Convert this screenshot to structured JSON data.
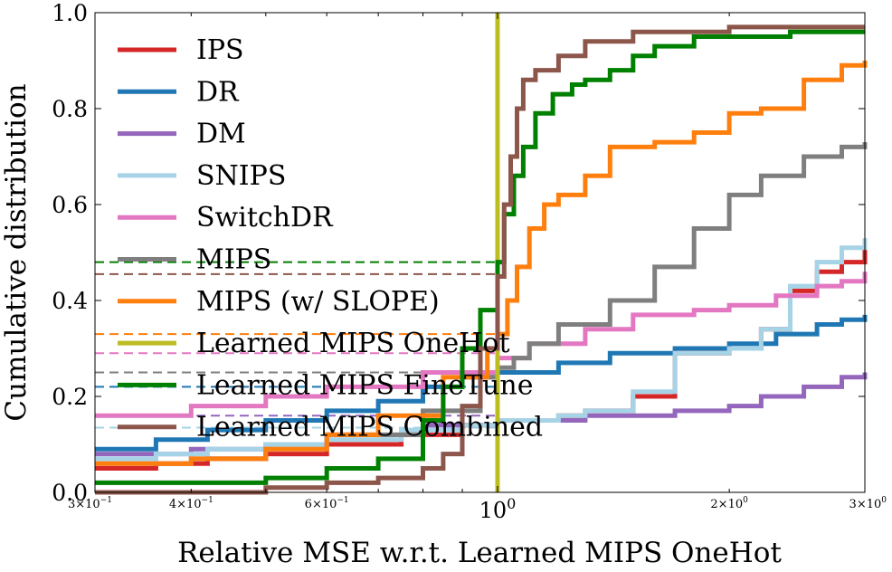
{
  "chart_data": {
    "type": "line",
    "title": "",
    "xlabel": "Relative MSE w.r.t. Learned MIPS OneHot",
    "ylabel": "Cumulative distribution",
    "x_scale": "log",
    "xlim": [
      0.3,
      3.0
    ],
    "ylim": [
      0.0,
      1.0
    ],
    "grid": false,
    "legend_position": "upper-left",
    "x_ticks": [
      {
        "value": 0.3,
        "base": "3×10",
        "exp": "−1"
      },
      {
        "value": 0.4,
        "base": "4×10",
        "exp": "−1"
      },
      {
        "value": 0.6,
        "base": "6×10",
        "exp": "−1"
      },
      {
        "value": 1.0,
        "base": "10",
        "exp": "0"
      },
      {
        "value": 2.0,
        "base": "2×10",
        "exp": "0"
      },
      {
        "value": 3.0,
        "base": "3×10",
        "exp": "0"
      }
    ],
    "y_ticks": [
      "0.0",
      "0.2",
      "0.4",
      "0.6",
      "0.8",
      "1.0"
    ],
    "y_tick_values": [
      0.0,
      0.2,
      0.4,
      0.6,
      0.8,
      1.0
    ],
    "series": [
      {
        "name": "IPS",
        "color": "#d62728",
        "x": [
          0.3,
          0.36,
          0.42,
          0.5,
          0.6,
          0.75,
          0.9,
          1.0,
          1.2,
          1.3,
          1.5,
          1.7,
          1.9,
          2.0,
          2.2,
          2.4,
          2.6,
          2.8,
          3.0
        ],
        "y": [
          0.05,
          0.06,
          0.07,
          0.08,
          0.1,
          0.12,
          0.14,
          0.15,
          0.16,
          0.17,
          0.2,
          0.29,
          0.29,
          0.3,
          0.34,
          0.42,
          0.46,
          0.48,
          0.51
        ]
      },
      {
        "name": "DR",
        "color": "#1f77b4",
        "x": [
          0.3,
          0.36,
          0.42,
          0.5,
          0.6,
          0.7,
          0.8,
          0.9,
          1.0,
          1.2,
          1.4,
          1.7,
          2.0,
          2.3,
          2.6,
          2.8,
          3.0
        ],
        "y": [
          0.09,
          0.11,
          0.13,
          0.15,
          0.17,
          0.19,
          0.22,
          0.24,
          0.25,
          0.27,
          0.29,
          0.3,
          0.31,
          0.33,
          0.35,
          0.36,
          0.37
        ]
      },
      {
        "name": "DM",
        "color": "#9467bd",
        "x": [
          0.3,
          0.4,
          0.5,
          0.6,
          0.8,
          1.0,
          1.3,
          1.5,
          1.7,
          2.0,
          2.2,
          2.5,
          2.8,
          3.0
        ],
        "y": [
          0.08,
          0.09,
          0.1,
          0.12,
          0.14,
          0.15,
          0.16,
          0.16,
          0.17,
          0.18,
          0.2,
          0.22,
          0.24,
          0.25
        ]
      },
      {
        "name": "SNIPS",
        "color": "#a6d3e6",
        "x": [
          0.3,
          0.36,
          0.42,
          0.5,
          0.6,
          0.75,
          0.9,
          1.0,
          1.2,
          1.3,
          1.5,
          1.7,
          1.9,
          2.0,
          2.2,
          2.4,
          2.6,
          2.8,
          3.0
        ],
        "y": [
          0.07,
          0.08,
          0.09,
          0.1,
          0.11,
          0.13,
          0.14,
          0.15,
          0.16,
          0.17,
          0.21,
          0.29,
          0.29,
          0.3,
          0.34,
          0.43,
          0.48,
          0.51,
          0.53
        ]
      },
      {
        "name": "SwitchDR",
        "color": "#e377c2",
        "x": [
          0.3,
          0.4,
          0.5,
          0.6,
          0.8,
          1.0,
          1.1,
          1.3,
          1.5,
          1.8,
          2.0,
          2.3,
          2.6,
          2.8,
          3.0
        ],
        "y": [
          0.16,
          0.18,
          0.2,
          0.22,
          0.25,
          0.28,
          0.31,
          0.34,
          0.37,
          0.38,
          0.39,
          0.41,
          0.43,
          0.44,
          0.46
        ]
      },
      {
        "name": "MIPS",
        "color": "#7f7f7f",
        "x": [
          0.3,
          0.4,
          0.5,
          0.6,
          0.8,
          0.95,
          1.0,
          1.05,
          1.1,
          1.2,
          1.4,
          1.6,
          1.8,
          2.0,
          2.2,
          2.5,
          2.8,
          3.0
        ],
        "y": [
          0.06,
          0.07,
          0.09,
          0.12,
          0.17,
          0.24,
          0.26,
          0.28,
          0.31,
          0.35,
          0.4,
          0.47,
          0.55,
          0.62,
          0.66,
          0.7,
          0.72,
          0.73
        ]
      },
      {
        "name": "MIPS (w/ SLOPE)",
        "color": "#ff7f0e",
        "x": [
          0.3,
          0.4,
          0.5,
          0.6,
          0.7,
          0.85,
          0.97,
          1.0,
          1.03,
          1.06,
          1.1,
          1.15,
          1.2,
          1.3,
          1.4,
          1.6,
          1.8,
          2.0,
          2.2,
          2.5,
          2.8,
          3.0
        ],
        "y": [
          0.06,
          0.07,
          0.09,
          0.12,
          0.16,
          0.24,
          0.3,
          0.33,
          0.4,
          0.47,
          0.55,
          0.6,
          0.62,
          0.66,
          0.72,
          0.73,
          0.75,
          0.79,
          0.8,
          0.86,
          0.89,
          0.9
        ]
      },
      {
        "name": "Learned MIPS OneHot",
        "color": "#bcbd22",
        "x": [
          1.0,
          1.0
        ],
        "y": [
          0.0,
          1.0
        ]
      },
      {
        "name": "Learned MIPS FineTune",
        "color": "#008000",
        "x": [
          0.3,
          0.5,
          0.6,
          0.7,
          0.8,
          0.85,
          0.9,
          0.95,
          1.0,
          1.02,
          1.05,
          1.08,
          1.12,
          1.18,
          1.25,
          1.3,
          1.4,
          1.5,
          1.6,
          1.8,
          2.0,
          2.4,
          3.0
        ],
        "y": [
          0.02,
          0.03,
          0.05,
          0.07,
          0.15,
          0.22,
          0.3,
          0.38,
          0.48,
          0.58,
          0.66,
          0.72,
          0.79,
          0.83,
          0.85,
          0.86,
          0.88,
          0.91,
          0.93,
          0.95,
          0.95,
          0.96,
          0.96
        ]
      },
      {
        "name": "Learned MIPS Combined",
        "color": "#8c564b",
        "x": [
          0.3,
          0.5,
          0.6,
          0.7,
          0.8,
          0.85,
          0.9,
          0.95,
          1.0,
          1.02,
          1.04,
          1.06,
          1.08,
          1.12,
          1.2,
          1.3,
          1.5,
          2.0,
          3.0
        ],
        "y": [
          0.0,
          0.01,
          0.02,
          0.03,
          0.05,
          0.08,
          0.18,
          0.3,
          0.45,
          0.6,
          0.7,
          0.8,
          0.86,
          0.88,
          0.91,
          0.94,
          0.96,
          0.97,
          0.97
        ]
      }
    ],
    "reference_lines": [
      {
        "color": "#008000",
        "y": 0.48
      },
      {
        "color": "#8c564b",
        "y": 0.455
      },
      {
        "color": "#ff7f0e",
        "y": 0.33
      },
      {
        "color": "#e377c2",
        "y": 0.29
      },
      {
        "color": "#7f7f7f",
        "y": 0.25
      },
      {
        "color": "#1f77b4",
        "y": 0.22
      },
      {
        "color": "#9467bd",
        "y": 0.16
      },
      {
        "color": "#a6d3e6",
        "y": 0.135
      }
    ]
  }
}
